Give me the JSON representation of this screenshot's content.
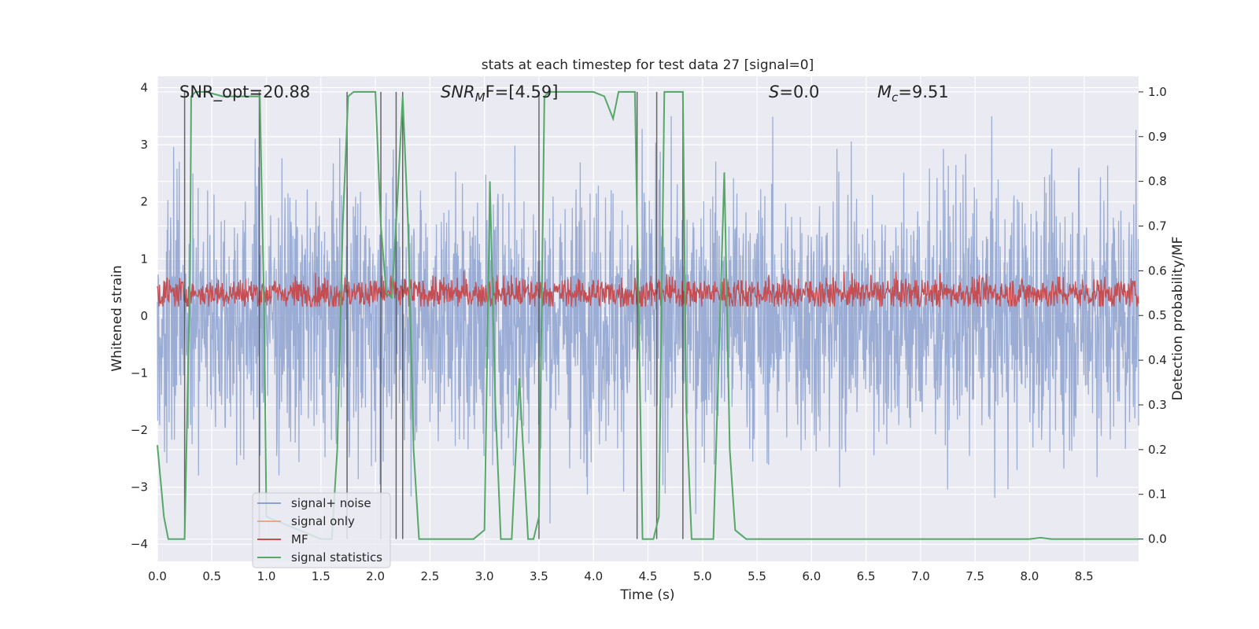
{
  "chart_data": {
    "type": "line",
    "title": "stats at each timestep for test data 27 [signal=0]",
    "xlabel": "Time (s)",
    "ylabel_left": "Whitened strain",
    "ylabel_right": "Detection probability/MF",
    "xlim": [
      0.0,
      9.0
    ],
    "ylim_left": [
      -4.3,
      4.2
    ],
    "ylim_right": [
      -0.05,
      1.035
    ],
    "xticks": [
      "0.0",
      "0.5",
      "1.0",
      "1.5",
      "2.0",
      "2.5",
      "3.0",
      "3.5",
      "4.0",
      "4.5",
      "5.0",
      "5.5",
      "6.0",
      "6.5",
      "7.0",
      "7.5",
      "8.0",
      "8.5"
    ],
    "xtick_values": [
      0,
      0.5,
      1,
      1.5,
      2,
      2.5,
      3,
      3.5,
      4,
      4.5,
      5,
      5.5,
      6,
      6.5,
      7,
      7.5,
      8,
      8.5
    ],
    "yticks_left": [
      "−4",
      "−3",
      "−2",
      "−1",
      "0",
      "1",
      "2",
      "3",
      "4"
    ],
    "ytick_left_values": [
      -4,
      -3,
      -2,
      -1,
      0,
      1,
      2,
      3,
      4
    ],
    "yticks_right": [
      "0.0",
      "0.1",
      "0.2",
      "0.3",
      "0.4",
      "0.5",
      "0.6",
      "0.7",
      "0.8",
      "0.9",
      "1.0"
    ],
    "ytick_right_values": [
      0,
      0.1,
      0.2,
      0.3,
      0.4,
      0.5,
      0.6,
      0.7,
      0.8,
      0.9,
      1.0
    ],
    "annotations": {
      "snr_opt": "SNR_opt=20.88",
      "snr_mf_main": "SNR",
      "snr_mf_sub": "M",
      "snr_mf_rest": "F=[4.59]",
      "s_main": "S",
      "s_rest": "=0.0",
      "mc_main": "M",
      "mc_sub": "c",
      "mc_rest": "=9.51"
    },
    "legend": [
      {
        "label": "signal+ noise",
        "color": "#8da2cf"
      },
      {
        "label": "signal only",
        "color": "#e8a985"
      },
      {
        "label": "MF",
        "color": "#c44e52"
      },
      {
        "label": "signal statistics",
        "color": "#55a868"
      }
    ],
    "series": [
      {
        "name": "signal+ noise",
        "color": "#8da2cf",
        "description_range": [
          -3.9,
          3.5
        ],
        "band_core": [
          -1.6,
          1.5
        ]
      },
      {
        "name": "MF",
        "color": "#c44e52",
        "range_right_axis": [
          0.52,
          0.62
        ],
        "mean_right_axis": 0.55
      },
      {
        "name": "signal statistics",
        "color": "#55a868",
        "x": [
          0.0,
          0.06,
          0.1,
          0.25,
          0.3,
          0.31,
          0.35,
          0.45,
          0.6,
          0.75,
          0.94,
          0.98,
          1.0,
          1.5,
          1.6,
          1.65,
          1.7,
          1.75,
          1.8,
          1.9,
          2.0,
          2.05,
          2.1,
          2.15,
          2.2,
          2.25,
          2.3,
          2.35,
          2.4,
          2.5,
          2.7,
          2.9,
          3.0,
          3.05,
          3.1,
          3.15,
          3.25,
          3.32,
          3.4,
          3.45,
          3.5,
          3.55,
          3.6,
          3.7,
          4.0,
          4.1,
          4.18,
          4.23,
          4.3,
          4.38,
          4.45,
          4.5,
          4.55,
          4.6,
          4.65,
          4.82,
          4.85,
          4.9,
          5.1,
          5.2,
          5.25,
          5.3,
          5.4,
          6.0,
          7.0,
          7.5,
          8.0,
          8.1,
          8.2,
          8.5,
          9.0
        ],
        "y": [
          0.21,
          0.05,
          0.0,
          0.0,
          0.6,
          0.99,
          1.0,
          1.0,
          0.99,
          0.99,
          0.99,
          0.5,
          0.05,
          0.0,
          0.0,
          0.2,
          0.7,
          0.99,
          1.0,
          1.0,
          1.0,
          0.7,
          0.55,
          0.54,
          0.75,
          0.99,
          0.7,
          0.2,
          0.0,
          0.0,
          0.0,
          0.0,
          0.02,
          0.8,
          0.3,
          0.0,
          0.0,
          0.36,
          0.0,
          0.0,
          0.05,
          0.99,
          1.0,
          1.0,
          1.0,
          0.99,
          0.94,
          1.0,
          1.0,
          1.0,
          0.0,
          0.0,
          0.0,
          0.05,
          1.0,
          1.0,
          0.3,
          0.0,
          0.0,
          0.82,
          0.2,
          0.02,
          0.0,
          0.0,
          0.0,
          0.0,
          0.0,
          0.003,
          0.0,
          0.0,
          0.0
        ]
      },
      {
        "name": "vertical markers",
        "color": "#444444",
        "x": [
          0.25,
          0.935,
          1.74,
          2.05,
          2.19,
          2.25,
          3.5,
          4.4,
          4.58,
          4.82
        ]
      }
    ]
  }
}
